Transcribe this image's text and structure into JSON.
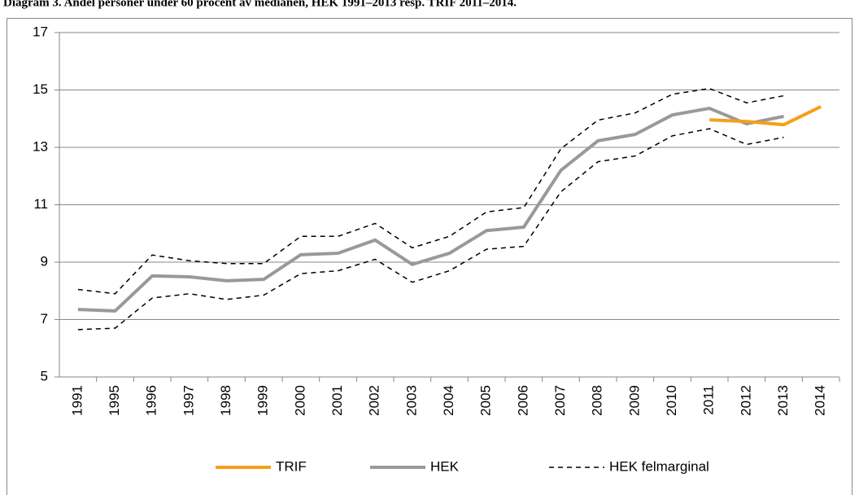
{
  "chart_data": {
    "type": "line",
    "title": "Diagram 3. Andel personer under 60 procent av medianen, HEK 1991–2013 resp. TRIF 2011–2014.",
    "categories": [
      "1991",
      "1995",
      "1996",
      "1997",
      "1998",
      "1999",
      "2000",
      "2001",
      "2002",
      "2003",
      "2004",
      "2005",
      "2006",
      "2007",
      "2008",
      "2009",
      "2010",
      "2011",
      "2012",
      "2013",
      "2014"
    ],
    "series": [
      {
        "name": "TRIF",
        "color": "#f5a01a",
        "width": 4,
        "values": [
          null,
          null,
          null,
          null,
          null,
          null,
          null,
          null,
          null,
          null,
          null,
          null,
          null,
          null,
          null,
          null,
          null,
          13.96,
          13.9,
          13.79,
          14.42
        ]
      },
      {
        "name": "HEK",
        "color": "#999999",
        "width": 4,
        "values": [
          7.35,
          7.3,
          8.52,
          8.49,
          8.35,
          8.4,
          9.26,
          9.31,
          9.77,
          8.92,
          9.31,
          10.1,
          10.22,
          12.2,
          13.23,
          13.45,
          14.13,
          14.36,
          13.82,
          14.08,
          null
        ]
      },
      {
        "name": "HEK felmarginal",
        "color": "#000000",
        "width": 1.5,
        "dashed": true,
        "values": [
          8.05,
          7.9,
          9.25,
          9.05,
          8.95,
          8.95,
          9.9,
          9.9,
          10.35,
          9.5,
          9.9,
          10.75,
          10.9,
          12.95,
          13.95,
          14.2,
          14.85,
          15.05,
          14.55,
          14.8,
          null
        ],
        "lower": [
          6.65,
          6.7,
          7.75,
          7.9,
          7.7,
          7.85,
          8.6,
          8.7,
          9.1,
          8.3,
          8.7,
          9.45,
          9.55,
          11.45,
          12.5,
          12.7,
          13.4,
          13.65,
          13.1,
          13.35,
          null
        ]
      }
    ],
    "ylim": [
      5,
      17
    ],
    "yticks": [
      5,
      7,
      9,
      11,
      13,
      15,
      17
    ],
    "grid": true,
    "legend": "bottom"
  }
}
